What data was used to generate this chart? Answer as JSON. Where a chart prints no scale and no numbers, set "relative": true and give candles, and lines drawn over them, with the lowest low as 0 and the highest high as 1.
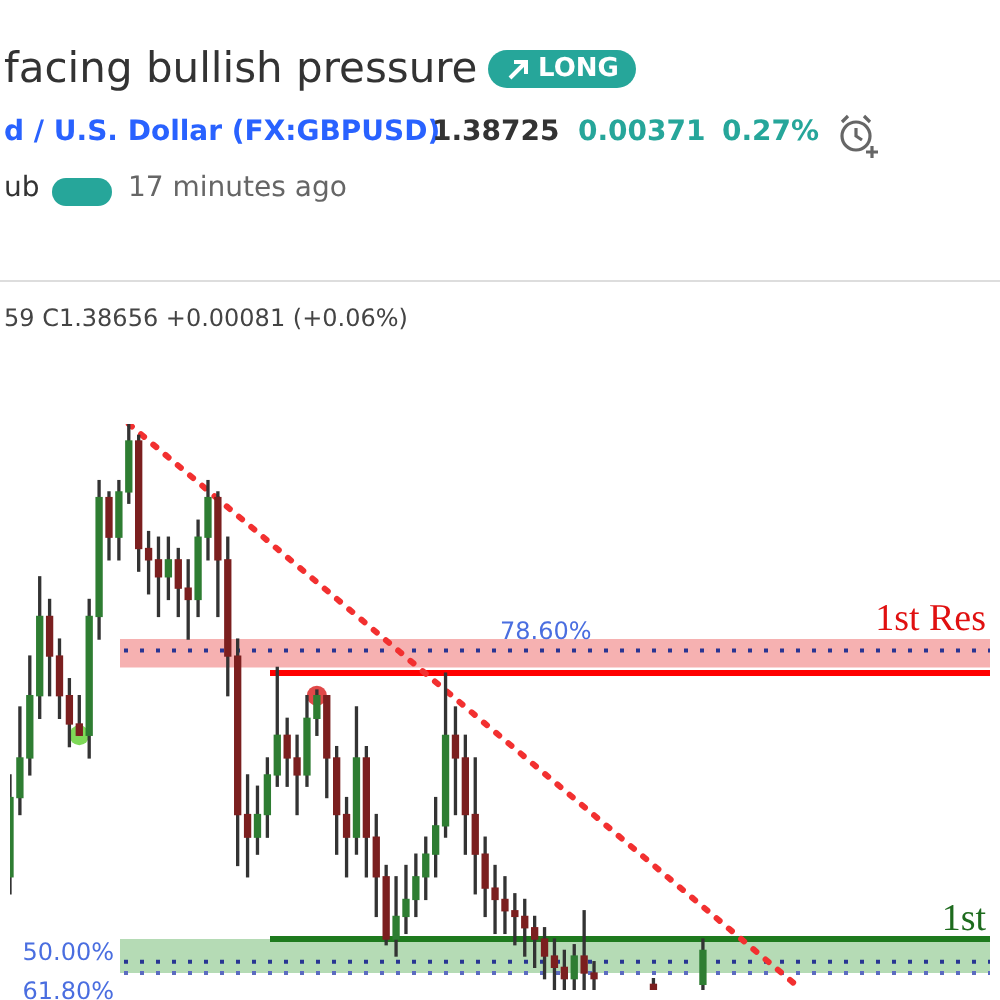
{
  "chart_data": {
    "type": "candlestick",
    "title": "facing bullish pressure",
    "subtitle": "d / U.S. Dollar (FX:GBPUSD)",
    "relative": true,
    "legend": false,
    "tick_labels": false,
    "annotations": [
      "LONG",
      "1.38725",
      "0.00371",
      "0.27%",
      "ub",
      "17 minutes ago",
      "59 C1.38656 +0.00081 (+0.06%)",
      "78.60%",
      "50.00%",
      "61.80%"
    ],
    "categories": [
      null,
      null,
      null,
      null,
      null,
      null,
      null,
      null,
      null,
      null,
      null,
      null,
      null,
      null,
      null,
      null,
      null,
      null,
      null,
      null,
      null,
      null,
      null,
      null,
      null,
      null,
      null,
      null,
      null,
      null,
      null,
      null,
      null,
      null,
      null,
      null,
      null,
      null,
      null,
      null,
      null,
      null,
      null,
      null,
      null,
      null,
      null,
      null,
      null,
      null,
      null,
      null,
      null,
      null,
      null,
      null,
      null,
      null,
      null,
      null,
      null,
      null,
      null,
      null,
      null,
      null,
      null,
      null,
      null,
      null,
      null,
      null,
      null,
      null,
      null,
      null,
      null,
      null,
      null,
      null,
      null,
      null,
      null,
      null,
      null,
      null,
      null,
      null,
      null,
      null,
      null,
      null,
      null,
      null,
      null,
      null,
      null,
      null,
      null,
      null
    ],
    "ohlc": [
      [
        0.2,
        0.38,
        0.17,
        0.34
      ],
      [
        0.34,
        0.5,
        0.31,
        0.41
      ],
      [
        0.41,
        0.59,
        0.38,
        0.52
      ],
      [
        0.52,
        0.73,
        0.48,
        0.66
      ],
      [
        0.66,
        0.69,
        0.52,
        0.59
      ],
      [
        0.59,
        0.62,
        0.48,
        0.52
      ],
      [
        0.52,
        0.55,
        0.43,
        0.47
      ],
      [
        0.47,
        0.52,
        0.45,
        0.45
      ],
      [
        0.45,
        0.69,
        0.41,
        0.66
      ],
      [
        0.66,
        0.9,
        0.62,
        0.87
      ],
      [
        0.87,
        0.88,
        0.76,
        0.8
      ],
      [
        0.8,
        0.9,
        0.76,
        0.88
      ],
      [
        0.88,
        1.0,
        0.86,
        0.97
      ],
      [
        0.97,
        0.98,
        0.74,
        0.78
      ],
      [
        0.78,
        0.81,
        0.7,
        0.76
      ],
      [
        0.76,
        0.8,
        0.66,
        0.73
      ],
      [
        0.73,
        0.8,
        0.69,
        0.76
      ],
      [
        0.76,
        0.78,
        0.66,
        0.71
      ],
      [
        0.71,
        0.76,
        0.62,
        0.69
      ],
      [
        0.69,
        0.83,
        0.66,
        0.8
      ],
      [
        0.8,
        0.9,
        0.76,
        0.87
      ],
      [
        0.87,
        0.88,
        0.66,
        0.76
      ],
      [
        0.76,
        0.8,
        0.52,
        0.59
      ],
      [
        0.59,
        0.62,
        0.22,
        0.31
      ],
      [
        0.31,
        0.38,
        0.2,
        0.27
      ],
      [
        0.27,
        0.36,
        0.24,
        0.31
      ],
      [
        0.31,
        0.41,
        0.27,
        0.38
      ],
      [
        0.38,
        0.57,
        0.36,
        0.45
      ],
      [
        0.45,
        0.48,
        0.36,
        0.41
      ],
      [
        0.41,
        0.45,
        0.31,
        0.38
      ],
      [
        0.38,
        0.52,
        0.36,
        0.48
      ],
      [
        0.48,
        0.53,
        0.45,
        0.52
      ],
      [
        0.52,
        0.52,
        0.34,
        0.41
      ],
      [
        0.41,
        0.43,
        0.24,
        0.31
      ],
      [
        0.31,
        0.34,
        0.2,
        0.27
      ],
      [
        0.27,
        0.5,
        0.24,
        0.41
      ],
      [
        0.41,
        0.43,
        0.2,
        0.27
      ],
      [
        0.27,
        0.31,
        0.13,
        0.2
      ],
      [
        0.2,
        0.22,
        0.08,
        0.09
      ],
      [
        0.09,
        0.2,
        0.06,
        0.13
      ],
      [
        0.13,
        0.22,
        0.1,
        0.16
      ],
      [
        0.16,
        0.24,
        0.13,
        0.2
      ],
      [
        0.2,
        0.27,
        0.16,
        0.24
      ],
      [
        0.24,
        0.34,
        0.2,
        0.29
      ],
      [
        0.29,
        0.56,
        0.27,
        0.45
      ],
      [
        0.45,
        0.5,
        0.31,
        0.41
      ],
      [
        0.41,
        0.45,
        0.24,
        0.31
      ],
      [
        0.31,
        0.41,
        0.17,
        0.24
      ],
      [
        0.24,
        0.27,
        0.13,
        0.18
      ],
      [
        0.18,
        0.22,
        0.1,
        0.16
      ],
      [
        0.16,
        0.2,
        0.1,
        0.14
      ],
      [
        0.14,
        0.17,
        0.08,
        0.13
      ],
      [
        0.13,
        0.16,
        0.06,
        0.11
      ],
      [
        0.11,
        0.13,
        0.04,
        0.09
      ],
      [
        0.09,
        0.11,
        0.02,
        0.06
      ],
      [
        0.06,
        0.09,
        0.0,
        0.04
      ],
      [
        0.04,
        0.07,
        0.0,
        0.02
      ],
      [
        0.02,
        0.08,
        0.0,
        0.06
      ],
      [
        0.06,
        0.14,
        0.0,
        0.03
      ],
      [
        0.03,
        0.05,
        0.0,
        0.02
      ],
      null,
      null,
      null,
      null,
      null,
      [
        0.01,
        0.02,
        0.0,
        0.0
      ],
      null,
      null,
      null,
      null,
      [
        0.01,
        0.09,
        0.0,
        0.07
      ],
      null,
      null,
      null,
      null,
      null,
      null,
      null,
      null,
      null,
      null,
      null,
      null,
      null,
      null,
      null,
      null,
      null,
      null,
      null,
      null,
      null,
      null,
      null,
      null,
      null,
      null,
      null,
      null,
      null
    ],
    "series": [
      {
        "type": "line",
        "color": "#f23030",
        "line_style": "dotted",
        "marker": "none",
        "values": [
          null,
          null,
          null,
          null,
          null,
          null,
          null,
          null,
          null,
          null,
          null,
          null,
          1.0,
          null,
          null,
          null,
          null,
          null,
          null,
          null,
          null,
          null,
          null,
          null,
          null,
          null,
          null,
          null,
          null,
          null,
          null,
          null,
          null,
          null,
          null,
          null,
          null,
          null,
          null,
          null,
          null,
          null,
          null,
          null,
          null,
          null,
          null,
          null,
          null,
          null,
          null,
          null,
          null,
          null,
          null,
          null,
          null,
          null,
          null,
          null,
          null,
          null,
          null,
          null,
          null,
          null,
          null,
          null,
          null,
          null,
          null,
          null,
          null,
          null,
          null,
          null,
          null,
          null,
          null,
          null,
          0.0,
          null,
          null,
          null,
          null,
          null,
          null,
          null,
          null,
          null,
          null,
          null,
          null,
          null,
          null,
          null,
          null,
          null,
          null,
          null
        ]
      },
      {
        "type": "scatter",
        "marker": "circle",
        "colors": [
          null,
          null,
          null,
          null,
          null,
          null,
          null,
          "#7ed957",
          null,
          null,
          null,
          null,
          null,
          null,
          null,
          null,
          null,
          null,
          null,
          null,
          null,
          null,
          null,
          null,
          null,
          null,
          null,
          null,
          null,
          null,
          null,
          "#e04848",
          null,
          null,
          null,
          null,
          null,
          null,
          null,
          null,
          null,
          null,
          null,
          null,
          null,
          null,
          null,
          null,
          null,
          null,
          null,
          null,
          null,
          null,
          null,
          null,
          null,
          null,
          null,
          null,
          null,
          null,
          null,
          null,
          null,
          null,
          null,
          null,
          null,
          null,
          null,
          null,
          null,
          null,
          null,
          null,
          null,
          null,
          null,
          null,
          null,
          null,
          null,
          null,
          null,
          null,
          null,
          null,
          null,
          null,
          null,
          null,
          null,
          null,
          null,
          null,
          null,
          null,
          null,
          null
        ],
        "values": [
          null,
          null,
          null,
          null,
          null,
          null,
          null,
          0.45,
          null,
          null,
          null,
          null,
          null,
          null,
          null,
          null,
          null,
          null,
          null,
          null,
          null,
          null,
          null,
          null,
          null,
          null,
          null,
          null,
          null,
          null,
          null,
          0.52,
          null,
          null,
          null,
          null,
          null,
          null,
          null,
          null,
          null,
          null,
          null,
          null,
          null,
          null,
          null,
          null,
          null,
          null,
          null,
          null,
          null,
          null,
          null,
          null,
          null,
          null,
          null,
          null,
          null,
          null,
          null,
          null,
          null,
          null,
          null,
          null,
          null,
          null,
          null,
          null,
          null,
          null,
          null,
          null,
          null,
          null,
          null,
          null,
          null,
          null,
          null,
          null,
          null,
          null,
          null,
          null,
          null,
          null,
          null,
          null,
          null,
          null,
          null,
          null,
          null,
          null,
          null,
          null
        ]
      }
    ],
    "bands": [
      {
        "axis": "y",
        "from": 0.57,
        "to": 0.62,
        "label": "1st Res",
        "color": "#f4a3a3"
      },
      {
        "axis": "y",
        "from": 0.03,
        "to": 0.09,
        "label": "1st",
        "color": "#a8d5a8"
      }
    ],
    "ref_lines": [
      {
        "axis": "y",
        "value": 0.6,
        "color": "#283593",
        "line_style": "dotted"
      },
      {
        "axis": "y",
        "value": 0.05,
        "color": "#283593",
        "line_style": "dotted"
      },
      {
        "axis": "y",
        "value": 0.03,
        "color": "#5c6bc0",
        "line_style": "dotted"
      },
      {
        "axis": "y",
        "value": 0.56,
        "color": "#ff0000",
        "line_style": "solid"
      },
      {
        "axis": "y",
        "value": 0.09,
        "color": "#1e7a1e",
        "line_style": "solid"
      }
    ]
  }
}
